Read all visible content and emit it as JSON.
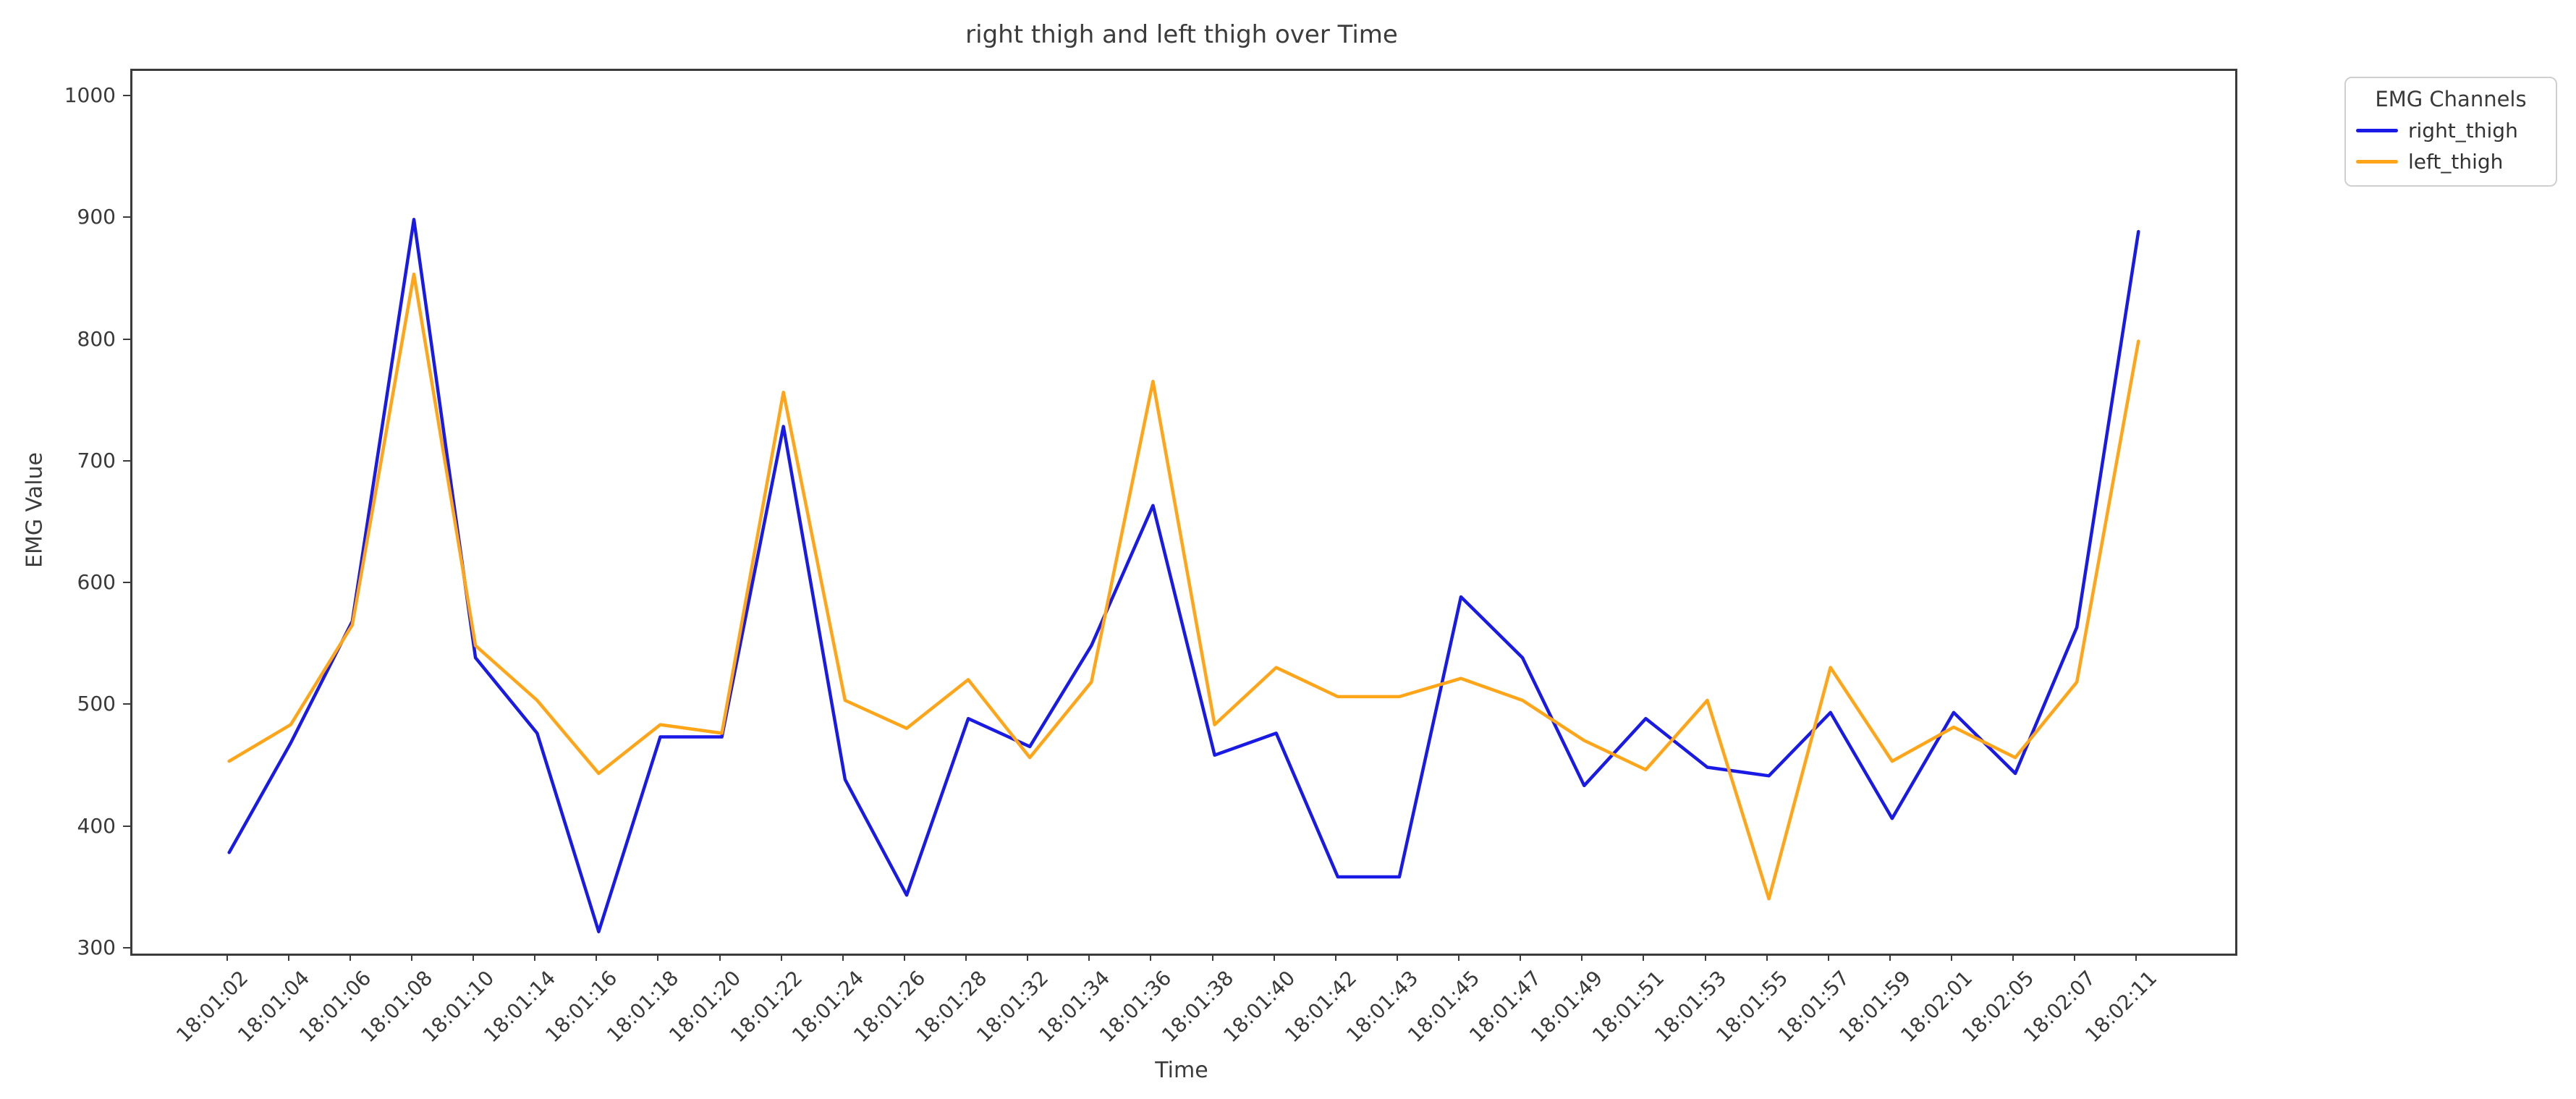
{
  "figure": {
    "title": "right thigh and left thigh over Time",
    "xlabel": "Time",
    "ylabel": "EMG Value"
  },
  "legend": {
    "title": "EMG Channels",
    "items": [
      {
        "label": "right_thigh",
        "color": "#1a1ae6"
      },
      {
        "label": "left_thigh",
        "color": "#ffa517"
      }
    ]
  },
  "chart_data": {
    "type": "line",
    "title": "right thigh and left thigh over Time",
    "xlabel": "Time",
    "ylabel": "EMG Value",
    "grid": false,
    "legend_position": "outside-top-right",
    "categories": [
      "18:01:02",
      "18:01:04",
      "18:01:06",
      "18:01:08",
      "18:01:10",
      "18:01:14",
      "18:01:16",
      "18:01:18",
      "18:01:20",
      "18:01:22",
      "18:01:24",
      "18:01:26",
      "18:01:28",
      "18:01:32",
      "18:01:34",
      "18:01:36",
      "18:01:38",
      "18:01:40",
      "18:01:42",
      "18:01:43",
      "18:01:45",
      "18:01:47",
      "18:01:49",
      "18:01:51",
      "18:01:53",
      "18:01:55",
      "18:01:57",
      "18:01:59",
      "18:02:01",
      "18:02:05",
      "18:02:07",
      "18:02:11"
    ],
    "series": [
      {
        "name": "right_thigh",
        "color": "#1a1ae6",
        "values": [
          380,
          470,
          570,
          900,
          540,
          478,
          315,
          475,
          475,
          730,
          440,
          345,
          490,
          467,
          550,
          665,
          460,
          478,
          360,
          360,
          590,
          540,
          435,
          490,
          450,
          443,
          495,
          408,
          495,
          445,
          565,
          890
        ]
      },
      {
        "name": "left_thigh",
        "color": "#ffa517",
        "values": [
          455,
          485,
          567,
          855,
          550,
          505,
          445,
          485,
          478,
          758,
          505,
          482,
          522,
          458,
          520,
          767,
          485,
          532,
          508,
          508,
          523,
          505,
          472,
          448,
          505,
          342,
          532,
          455,
          483,
          458,
          520,
          800
        ]
      }
    ],
    "y_ticks": [
      300,
      400,
      500,
      600,
      700,
      800,
      900,
      1000
    ],
    "ylim": [
      297,
      1022
    ],
    "x_margin_frac": 0.046
  }
}
